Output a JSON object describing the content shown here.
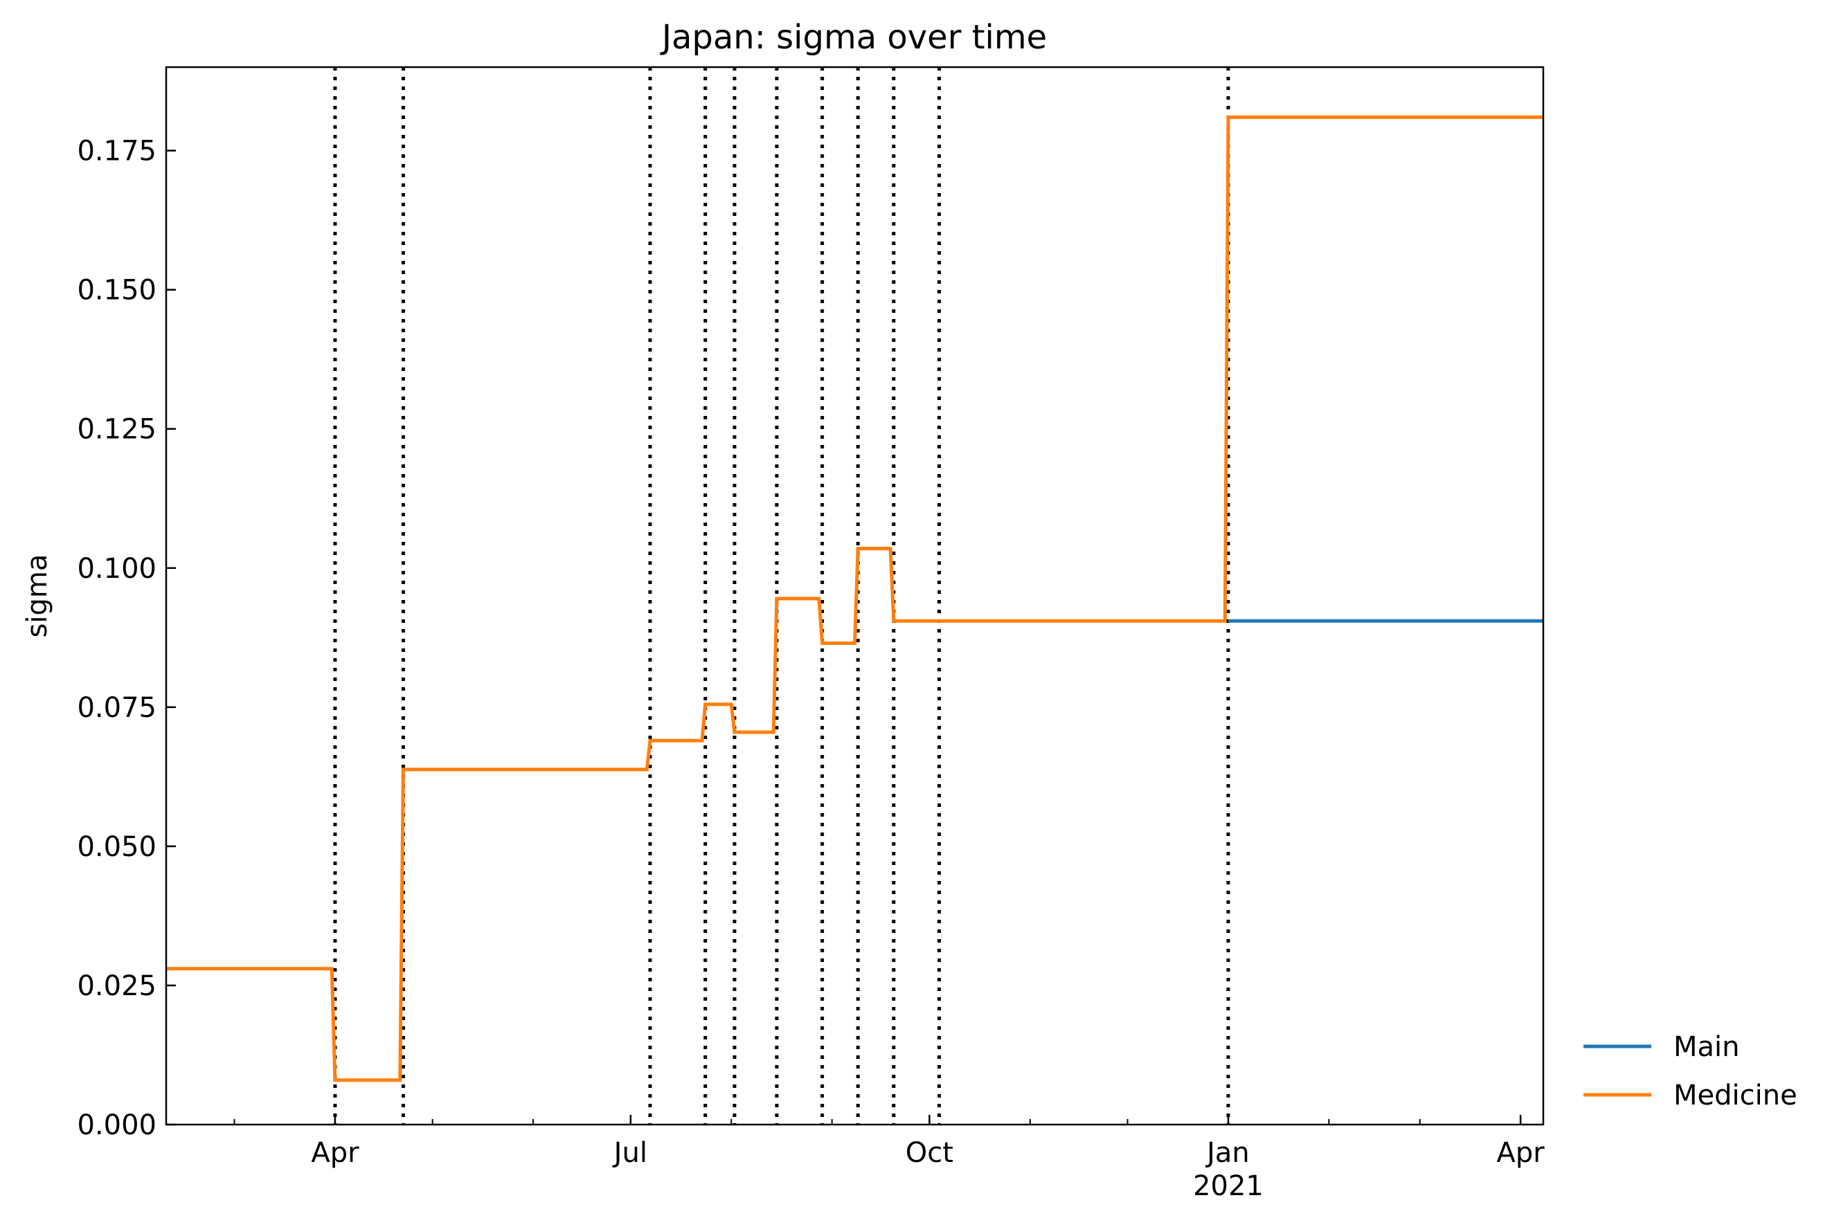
{
  "chart_data": {
    "type": "line",
    "title": "Japan: sigma over time",
    "xlabel": "",
    "ylabel": "sigma",
    "x_axis_type": "date",
    "xlim": [
      "2020-02-09",
      "2021-04-08"
    ],
    "ylim": [
      0.0,
      0.19
    ],
    "y_ticks": [
      0.0,
      0.025,
      0.05,
      0.075,
      0.1,
      0.125,
      0.15,
      0.175
    ],
    "y_tick_labels": [
      "0.000",
      "0.025",
      "0.050",
      "0.075",
      "0.100",
      "0.125",
      "0.150",
      "0.175"
    ],
    "x_major_ticks": [
      {
        "date": "2020-04-01",
        "label": "Apr",
        "sublabel": ""
      },
      {
        "date": "2020-07-01",
        "label": "Jul",
        "sublabel": ""
      },
      {
        "date": "2020-10-01",
        "label": "Oct",
        "sublabel": ""
      },
      {
        "date": "2021-01-01",
        "label": "Jan",
        "sublabel": "2021"
      },
      {
        "date": "2021-04-01",
        "label": "Apr",
        "sublabel": ""
      }
    ],
    "x_minor_ticks": [
      "2020-03-01",
      "2020-05-01",
      "2020-06-01",
      "2020-08-01",
      "2020-09-01",
      "2020-11-01",
      "2020-12-01",
      "2021-02-01",
      "2021-03-01"
    ],
    "change_dates": [
      "2020-04-01",
      "2020-04-22",
      "2020-07-07",
      "2020-07-24",
      "2020-08-02",
      "2020-08-15",
      "2020-08-29",
      "2020-09-09",
      "2020-09-20",
      "2020-10-04",
      "2021-01-01"
    ],
    "series": [
      {
        "name": "Main",
        "color": "#1f77b4",
        "points": [
          [
            "2021-01-01",
            0.0905
          ],
          [
            "2021-04-08",
            0.0905
          ]
        ]
      },
      {
        "name": "Medicine",
        "color": "#ff7f0e",
        "points": [
          [
            "2020-02-09",
            0.028
          ],
          [
            "2020-03-31",
            0.028
          ],
          [
            "2020-04-01",
            0.008
          ],
          [
            "2020-04-21",
            0.008
          ],
          [
            "2020-04-22",
            0.0638
          ],
          [
            "2020-07-06",
            0.0638
          ],
          [
            "2020-07-07",
            0.069
          ],
          [
            "2020-07-23",
            0.069
          ],
          [
            "2020-07-24",
            0.0755
          ],
          [
            "2020-08-01",
            0.0755
          ],
          [
            "2020-08-02",
            0.0705
          ],
          [
            "2020-08-14",
            0.0705
          ],
          [
            "2020-08-15",
            0.0945
          ],
          [
            "2020-08-28",
            0.0945
          ],
          [
            "2020-08-29",
            0.0865
          ],
          [
            "2020-09-08",
            0.0865
          ],
          [
            "2020-09-09",
            0.1035
          ],
          [
            "2020-09-19",
            0.1035
          ],
          [
            "2020-09-20",
            0.0905
          ],
          [
            "2020-12-31",
            0.0905
          ],
          [
            "2021-01-01",
            0.181
          ],
          [
            "2021-04-08",
            0.181
          ]
        ]
      }
    ],
    "legend": {
      "position": "outside-bottom-right",
      "entries": [
        "Main",
        "Medicine"
      ]
    },
    "grid": false
  }
}
